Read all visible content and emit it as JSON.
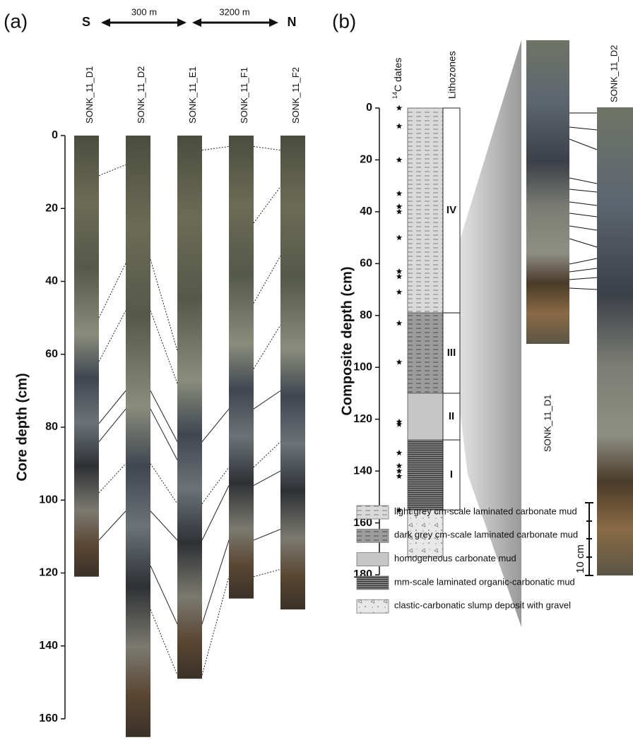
{
  "panel_a": {
    "label": "(a)",
    "south": "S",
    "north": "N",
    "distances": [
      "300 m",
      "3200 m"
    ],
    "y_axis_label": "Core depth (cm)",
    "ylim": [
      0,
      160
    ],
    "yticks": [
      0,
      20,
      40,
      60,
      80,
      100,
      120,
      140,
      160
    ],
    "cores": [
      {
        "name": "SONK_11_D1",
        "length": 121
      },
      {
        "name": "SONK_11_D2",
        "length": 165
      },
      {
        "name": "SONK_11_E1",
        "length": 149
      },
      {
        "name": "SONK_11_F1",
        "length": 127
      },
      {
        "name": "SONK_11_F2",
        "length": 130
      }
    ],
    "correlations": [
      {
        "solid": [
          [
            79,
            70
          ],
          [
            84,
            75
          ],
          [
            111,
            103
          ]
        ],
        "dotted": [
          [
            11,
            8
          ],
          [
            50,
            35
          ],
          [
            62,
            48
          ],
          [
            98,
            90
          ]
        ]
      },
      {
        "solid": [
          [
            70,
            84
          ],
          [
            75,
            89
          ],
          [
            103,
            111
          ],
          [
            118,
            134
          ]
        ],
        "dotted": [
          [
            34,
            59
          ],
          [
            48,
            68
          ],
          [
            90,
            101
          ],
          [
            130,
            148
          ]
        ]
      },
      {
        "solid": [
          [
            84,
            75
          ],
          [
            111,
            96
          ],
          [
            134,
            111
          ]
        ],
        "dotted": [
          [
            4,
            3
          ],
          [
            101,
            91
          ],
          [
            148,
            121
          ]
        ]
      },
      {
        "solid": [
          [
            75,
            70
          ],
          [
            96,
            92
          ],
          [
            111,
            108
          ]
        ],
        "dotted": [
          [
            3,
            4
          ],
          [
            24,
            14
          ],
          [
            46,
            33
          ],
          [
            64,
            52
          ],
          [
            91,
            84
          ],
          [
            121,
            119
          ]
        ]
      }
    ]
  },
  "panel_b": {
    "label": "(b)",
    "y_axis_label": "Composite depth (cm)",
    "ylim": [
      0,
      180
    ],
    "yticks": [
      0,
      20,
      40,
      60,
      80,
      100,
      120,
      140,
      160,
      180
    ],
    "dates_label": {
      "superscript": "14",
      "text": "C dates"
    },
    "lithozones_label": "Lithozones",
    "dates": [
      0,
      7,
      20,
      33,
      38,
      40,
      50,
      63,
      65,
      71,
      83,
      98,
      121,
      122,
      133,
      138,
      140,
      142,
      155
    ],
    "lithology": {
      "boundaries": [
        0,
        79,
        110,
        128,
        155,
        173
      ],
      "patterns": [
        "light",
        "dark",
        "homogeneous",
        "laminated",
        "clastic"
      ]
    },
    "zones": {
      "names": [
        "IV",
        "III",
        "II",
        "I"
      ],
      "boundaries": [
        0,
        79,
        110,
        128,
        155
      ]
    },
    "photo_labels": [
      "SONK_11_D1",
      "SONK_11_D2"
    ],
    "scale_label": "10 cm",
    "legend": [
      {
        "label": "light grey cm-scale laminated carbonate mud",
        "pattern": "light"
      },
      {
        "label": "dark grey cm-scale laminated carbonate mud",
        "pattern": "dark"
      },
      {
        "label": "homogeneous carbonate mud",
        "pattern": "homogeneous"
      },
      {
        "label": "mm-scale laminated organic-carbonatic mud",
        "pattern": "laminated"
      },
      {
        "label": "clastic-carbonatic slump deposit with gravel",
        "pattern": "clastic"
      }
    ]
  }
}
